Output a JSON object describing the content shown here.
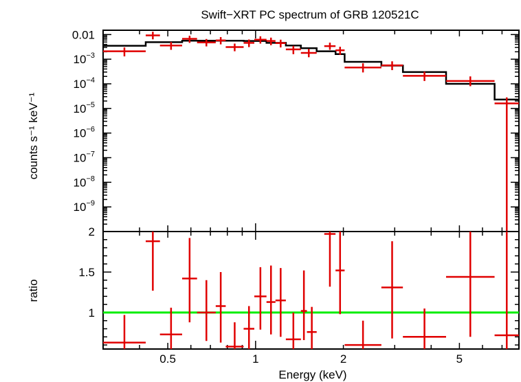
{
  "chart_data": [
    {
      "type": "scatter",
      "title": "Swift−XRT PC spectrum of GRB 120521C",
      "ylabel": "counts s⁻¹ keV⁻¹",
      "xlabel": "",
      "xscale": "log",
      "yscale": "log",
      "xlim": [
        0.3,
        8.0
      ],
      "ylim": [
        1e-10,
        0.015
      ],
      "xticks": [
        {
          "value": 0.5,
          "label": ""
        },
        {
          "value": 1,
          "label": ""
        },
        {
          "value": 2,
          "label": ""
        },
        {
          "value": 5,
          "label": ""
        }
      ],
      "yticks": [
        {
          "value": 0.01,
          "label": "0.01"
        },
        {
          "value": 0.001,
          "label": "10",
          "exp": "−3"
        },
        {
          "value": 0.0001,
          "label": "10",
          "exp": "−4"
        },
        {
          "value": 1e-05,
          "label": "10",
          "exp": "−5"
        },
        {
          "value": 1e-06,
          "label": "10",
          "exp": "−6"
        },
        {
          "value": 1e-07,
          "label": "10",
          "exp": "−7"
        },
        {
          "value": 1e-08,
          "label": "10",
          "exp": "−8"
        },
        {
          "value": 1e-09,
          "label": "10",
          "exp": "−9"
        }
      ],
      "series": [
        {
          "color": "#e00000",
          "points": [
            {
              "xlo": 0.3,
              "xhi": 0.42,
              "y": 0.0021,
              "ylo": 0.0013,
              "yhi": 0.003
            },
            {
              "xlo": 0.42,
              "xhi": 0.47,
              "y": 0.0093,
              "ylo": 0.0064,
              "yhi": 0.013
            },
            {
              "xlo": 0.47,
              "xhi": 0.56,
              "y": 0.0036,
              "ylo": 0.0024,
              "yhi": 0.005
            },
            {
              "xlo": 0.56,
              "xhi": 0.63,
              "y": 0.0067,
              "ylo": 0.0046,
              "yhi": 0.009
            },
            {
              "xlo": 0.63,
              "xhi": 0.73,
              "y": 0.0048,
              "ylo": 0.0033,
              "yhi": 0.0066
            },
            {
              "xlo": 0.73,
              "xhi": 0.79,
              "y": 0.0058,
              "ylo": 0.004,
              "yhi": 0.0079
            },
            {
              "xlo": 0.79,
              "xhi": 0.91,
              "y": 0.0031,
              "ylo": 0.0021,
              "yhi": 0.0043
            },
            {
              "xlo": 0.91,
              "xhi": 0.99,
              "y": 0.0046,
              "ylo": 0.0031,
              "yhi": 0.0063
            },
            {
              "xlo": 0.99,
              "xhi": 1.09,
              "y": 0.0062,
              "ylo": 0.0043,
              "yhi": 0.0085
            },
            {
              "xlo": 1.09,
              "xhi": 1.17,
              "y": 0.0055,
              "ylo": 0.0037,
              "yhi": 0.0075
            },
            {
              "xlo": 1.17,
              "xhi": 1.27,
              "y": 0.0045,
              "ylo": 0.003,
              "yhi": 0.0062
            },
            {
              "xlo": 1.27,
              "xhi": 1.43,
              "y": 0.0025,
              "ylo": 0.0016,
              "yhi": 0.0035
            },
            {
              "xlo": 1.43,
              "xhi": 1.62,
              "y": 0.0018,
              "ylo": 0.0012,
              "yhi": 0.0026
            },
            {
              "xlo": 1.72,
              "xhi": 1.88,
              "y": 0.0034,
              "ylo": 0.0024,
              "yhi": 0.0047
            },
            {
              "xlo": 1.88,
              "xhi": 2.02,
              "y": 0.0023,
              "ylo": 0.0015,
              "yhi": 0.0032
            },
            {
              "xlo": 2.02,
              "xhi": 2.7,
              "y": 0.00046,
              "ylo": 0.00029,
              "yhi": 0.00068
            },
            {
              "xlo": 2.7,
              "xhi": 3.2,
              "y": 0.00056,
              "ylo": 0.00036,
              "yhi": 0.00082
            },
            {
              "xlo": 3.2,
              "xhi": 4.5,
              "y": 0.00021,
              "ylo": 0.00013,
              "yhi": 0.00031
            },
            {
              "xlo": 4.5,
              "xhi": 6.6,
              "y": 0.00013,
              "ylo": 8e-05,
              "yhi": 0.0002
            },
            {
              "xlo": 6.6,
              "xhi": 8.0,
              "y": 1.6e-05,
              "ylo": 1e-10,
              "yhi": 2.8e-05
            }
          ]
        }
      ],
      "model": {
        "color": "#000000",
        "steps": [
          {
            "xlo": 0.3,
            "xhi": 0.42,
            "y": 0.0035
          },
          {
            "xlo": 0.42,
            "xhi": 0.56,
            "y": 0.0049
          },
          {
            "xlo": 0.56,
            "xhi": 0.73,
            "y": 0.0056
          },
          {
            "xlo": 0.73,
            "xhi": 0.91,
            "y": 0.0056
          },
          {
            "xlo": 0.91,
            "xhi": 1.09,
            "y": 0.0055
          },
          {
            "xlo": 1.09,
            "xhi": 1.27,
            "y": 0.0046
          },
          {
            "xlo": 1.27,
            "xhi": 1.43,
            "y": 0.0036
          },
          {
            "xlo": 1.43,
            "xhi": 1.62,
            "y": 0.0028
          },
          {
            "xlo": 1.62,
            "xhi": 1.88,
            "y": 0.0021
          },
          {
            "xlo": 1.88,
            "xhi": 2.02,
            "y": 0.0016
          },
          {
            "xlo": 2.02,
            "xhi": 2.7,
            "y": 0.00078
          },
          {
            "xlo": 2.7,
            "xhi": 3.2,
            "y": 0.00055
          },
          {
            "xlo": 3.2,
            "xhi": 4.5,
            "y": 0.0003
          },
          {
            "xlo": 4.5,
            "xhi": 6.6,
            "y": 0.0001
          },
          {
            "xlo": 6.6,
            "xhi": 8.0,
            "y": 2.3e-05
          }
        ]
      }
    },
    {
      "type": "scatter",
      "title": "",
      "xlabel": "Energy (keV)",
      "ylabel": "ratio",
      "xscale": "log",
      "xlim": [
        0.3,
        8.0
      ],
      "ylim": [
        0.55,
        2.0
      ],
      "xticks": [
        {
          "value": 0.5,
          "label": "0.5"
        },
        {
          "value": 1,
          "label": "1"
        },
        {
          "value": 2,
          "label": "2"
        },
        {
          "value": 5,
          "label": "5"
        }
      ],
      "yticks": [
        {
          "value": 1,
          "label": "1"
        },
        {
          "value": 1.5,
          "label": "1.5"
        },
        {
          "value": 2,
          "label": "2"
        }
      ],
      "reference_line": {
        "y": 1,
        "color": "#00ee00"
      },
      "series": [
        {
          "color": "#e00000",
          "points": [
            {
              "xlo": 0.3,
              "xhi": 0.42,
              "y": 0.63,
              "ylo": 0.55,
              "yhi": 0.97
            },
            {
              "xlo": 0.42,
              "xhi": 0.47,
              "y": 1.88,
              "ylo": 1.27,
              "yhi": 2.0
            },
            {
              "xlo": 0.47,
              "xhi": 0.56,
              "y": 0.73,
              "ylo": 0.55,
              "yhi": 1.06
            },
            {
              "xlo": 0.56,
              "xhi": 0.63,
              "y": 1.42,
              "ylo": 0.88,
              "yhi": 1.92
            },
            {
              "xlo": 0.63,
              "xhi": 0.73,
              "y": 1.0,
              "ylo": 0.65,
              "yhi": 1.4
            },
            {
              "xlo": 0.73,
              "xhi": 0.79,
              "y": 1.08,
              "ylo": 0.63,
              "yhi": 1.5
            },
            {
              "xlo": 0.79,
              "xhi": 0.91,
              "y": 0.58,
              "ylo": 0.55,
              "yhi": 0.88
            },
            {
              "xlo": 0.91,
              "xhi": 0.99,
              "y": 0.8,
              "ylo": 0.55,
              "yhi": 1.08
            },
            {
              "xlo": 0.99,
              "xhi": 1.09,
              "y": 1.2,
              "ylo": 0.79,
              "yhi": 1.56
            },
            {
              "xlo": 1.09,
              "xhi": 1.17,
              "y": 1.13,
              "ylo": 0.73,
              "yhi": 1.58
            },
            {
              "xlo": 1.17,
              "xhi": 1.27,
              "y": 1.15,
              "ylo": 0.7,
              "yhi": 1.55
            },
            {
              "xlo": 1.27,
              "xhi": 1.43,
              "y": 0.67,
              "ylo": 0.55,
              "yhi": 1.0
            },
            {
              "xlo": 1.43,
              "xhi": 1.5,
              "y": 1.02,
              "ylo": 0.66,
              "yhi": 1.52
            },
            {
              "xlo": 1.5,
              "xhi": 1.62,
              "y": 0.76,
              "ylo": 0.55,
              "yhi": 1.07
            },
            {
              "xlo": 1.72,
              "xhi": 1.88,
              "y": 1.97,
              "ylo": 1.32,
              "yhi": 2.0
            },
            {
              "xlo": 1.88,
              "xhi": 2.02,
              "y": 1.52,
              "ylo": 0.98,
              "yhi": 2.0
            },
            {
              "xlo": 2.02,
              "xhi": 2.7,
              "y": 0.6,
              "ylo": 0.55,
              "yhi": 0.9
            },
            {
              "xlo": 2.7,
              "xhi": 3.2,
              "y": 1.31,
              "ylo": 0.68,
              "yhi": 1.88
            },
            {
              "xlo": 3.2,
              "xhi": 4.5,
              "y": 0.7,
              "ylo": 0.55,
              "yhi": 1.05
            },
            {
              "xlo": 4.5,
              "xhi": 6.6,
              "y": 1.44,
              "ylo": 0.7,
              "yhi": 2.0
            },
            {
              "xlo": 6.6,
              "xhi": 8.0,
              "y": 0.72,
              "ylo": 0.55,
              "yhi": 2.0
            }
          ]
        }
      ]
    }
  ]
}
